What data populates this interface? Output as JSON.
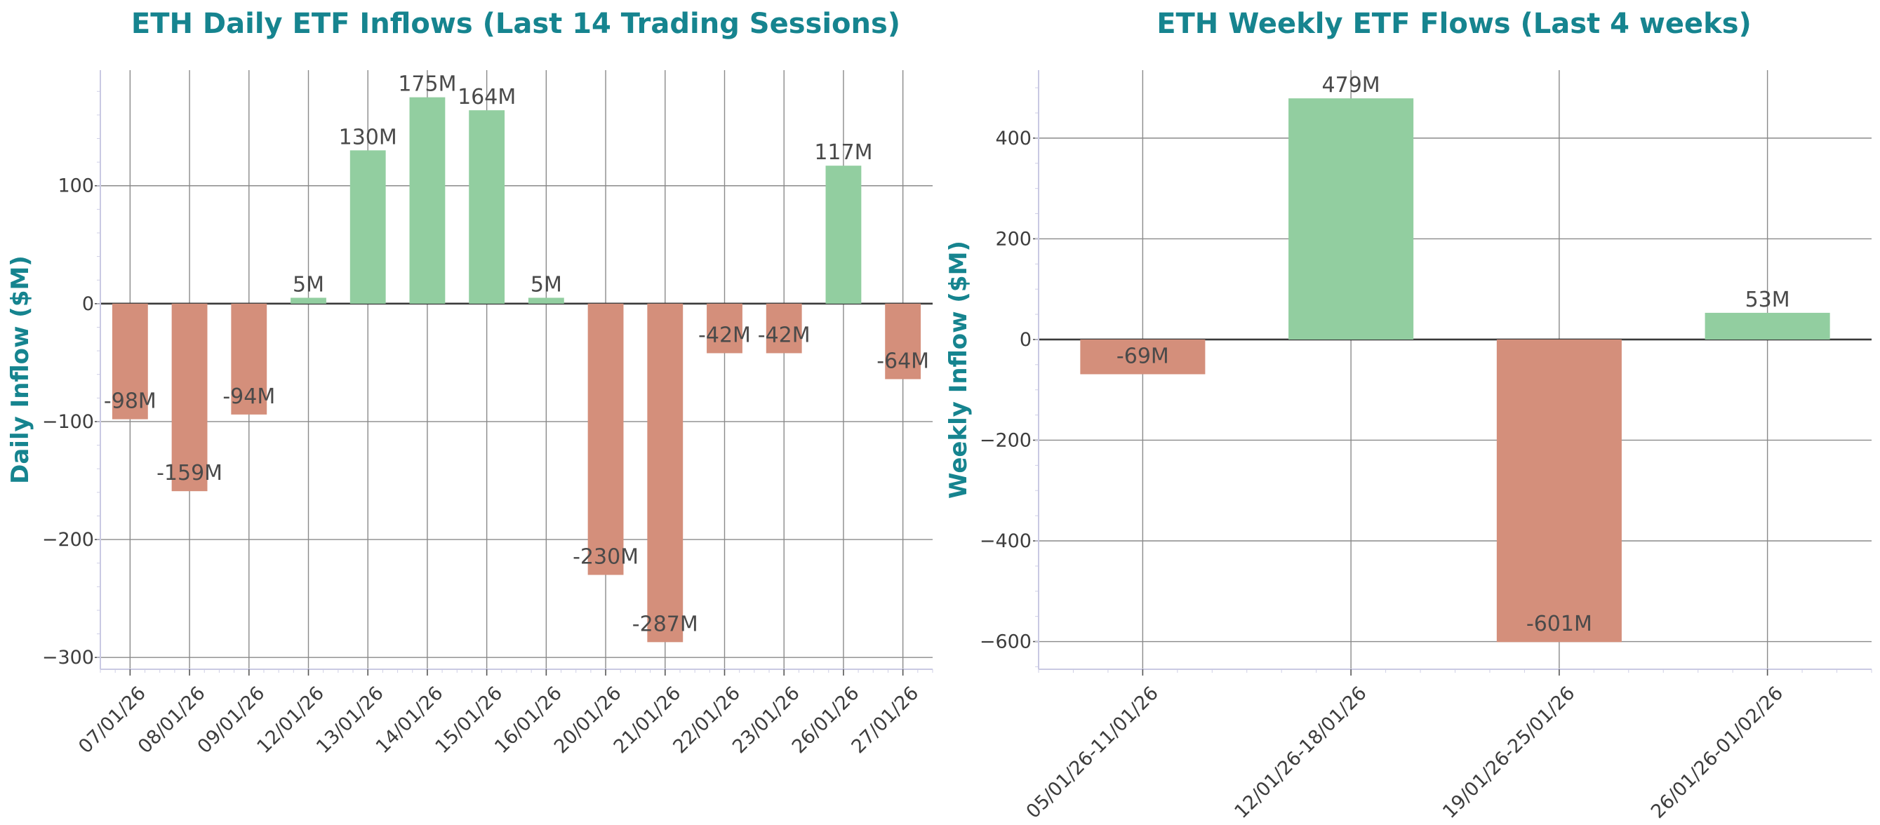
{
  "colors": {
    "positive": "#92cea0",
    "negative": "#d48f7b",
    "title": "#16848f",
    "text": "#4a4a4a"
  },
  "chart_data": [
    {
      "type": "bar",
      "title": "ETH Daily ETF Inflows (Last 14 Trading Sessions)",
      "xlabel": "",
      "ylabel": "Daily Inflow ($M)",
      "categories": [
        "07/01/26",
        "08/01/26",
        "09/01/26",
        "12/01/26",
        "13/01/26",
        "14/01/26",
        "15/01/26",
        "16/01/26",
        "20/01/26",
        "21/01/26",
        "22/01/26",
        "23/01/26",
        "26/01/26",
        "27/01/26"
      ],
      "values": [
        -98,
        -159,
        -94,
        5,
        130,
        175,
        164,
        5,
        -230,
        -287,
        -42,
        -42,
        117,
        -64
      ],
      "data_labels": [
        "-98M",
        "-159M",
        "-94M",
        "5M",
        "130M",
        "175M",
        "164M",
        "5M",
        "-230M",
        "-287M",
        "-42M",
        "-42M",
        "117M",
        "-64M"
      ],
      "yticks": [
        100,
        0,
        -100,
        -200,
        -300
      ],
      "ytick_labels": [
        "100",
        "0",
        "−100",
        "−200",
        "−300"
      ],
      "ylim": [
        -310,
        198
      ],
      "grid": true
    },
    {
      "type": "bar",
      "title": "ETH Weekly ETF Flows (Last 4 weeks)",
      "xlabel": "",
      "ylabel": "Weekly Inflow ($M)",
      "categories": [
        "05/01/26-11/01/26",
        "12/01/26-18/01/26",
        "19/01/26-25/01/26",
        "26/01/26-01/02/26"
      ],
      "values": [
        -69,
        479,
        -601,
        53
      ],
      "data_labels": [
        "-69M",
        "479M",
        "-601M",
        "53M"
      ],
      "yticks": [
        400,
        200,
        0,
        -200,
        -400,
        -600
      ],
      "ytick_labels": [
        "400",
        "200",
        "0",
        "−200",
        "−400",
        "−600"
      ],
      "ylim": [
        -655,
        535
      ],
      "grid": true
    }
  ]
}
